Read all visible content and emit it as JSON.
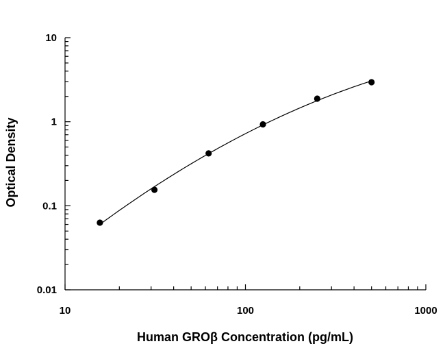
{
  "chart_data": {
    "type": "scatter",
    "title": "",
    "xlabel": "Human GROβ Concentration (pg/mL)",
    "ylabel": "Optical Density",
    "x_scale": "log",
    "y_scale": "log",
    "xlim": [
      10,
      1000
    ],
    "ylim": [
      0.01,
      10
    ],
    "x_ticks": [
      "10",
      "100",
      "1000"
    ],
    "y_ticks": [
      "10",
      "1",
      "0.1",
      "0.01"
    ],
    "grid": false,
    "legend": "none",
    "series": [
      {
        "points": [
          {
            "x": 15.6,
            "y": 0.063
          },
          {
            "x": 31.3,
            "y": 0.155
          },
          {
            "x": 62.5,
            "y": 0.42
          },
          {
            "x": 125,
            "y": 0.93
          },
          {
            "x": 250,
            "y": 1.88
          },
          {
            "x": 500,
            "y": 2.95
          }
        ],
        "fit_curve": "smooth",
        "marker_color": "#000000",
        "line_color": "#000000"
      }
    ]
  }
}
